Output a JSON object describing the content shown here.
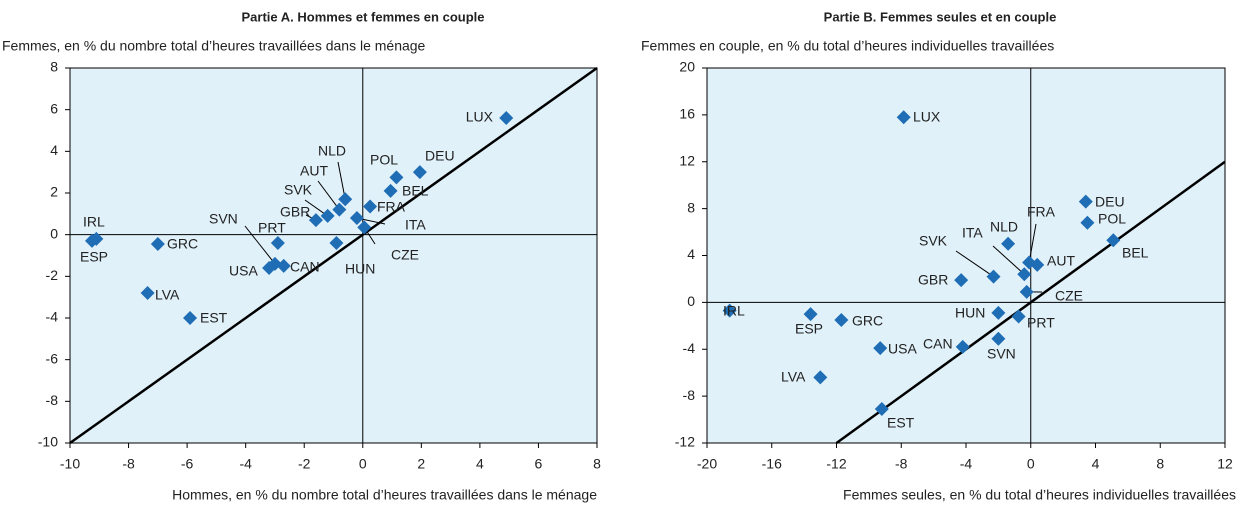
{
  "chart_data": [
    {
      "type": "scatter",
      "title": "Partie A. Hommes et femmes en couple",
      "y_label": "Femmes, en % du nombre total d’heures travaillées dans le ménage",
      "x_label": "Hommes, en % du nombre total d’heures travaillées dans le ménage",
      "color": "#1f6db5",
      "diagonal": true,
      "labels": [
        "LUX",
        "DEU",
        "POL",
        "BEL",
        "NLD",
        "AUT",
        "SVK",
        "GBR",
        "FRA",
        "ITA",
        "CZE",
        "HUN",
        "PRT",
        "SVN",
        "USA",
        "CAN",
        "IRL",
        "ESP",
        "GRC",
        "LVA",
        "EST"
      ],
      "x": [
        4.9,
        1.95,
        1.15,
        0.95,
        -0.6,
        -0.8,
        -1.2,
        -1.6,
        0.25,
        -0.2,
        0.05,
        -0.9,
        -2.9,
        -3.0,
        -3.2,
        -2.7,
        -9.1,
        -9.25,
        -7.0,
        -7.35,
        -5.9
      ],
      "y": [
        5.6,
        3.0,
        2.75,
        2.1,
        1.7,
        1.2,
        0.9,
        0.7,
        1.35,
        0.8,
        0.35,
        -0.4,
        -0.4,
        -1.4,
        -1.6,
        -1.5,
        -0.2,
        -0.3,
        -0.45,
        -2.8,
        -4.0
      ],
      "xlim": [
        -10,
        8
      ],
      "xticks": [
        -10,
        -8,
        -6,
        -4,
        -2,
        0,
        2,
        4,
        6,
        8
      ],
      "ylim": [
        -10,
        8
      ],
      "yticks": [
        -10,
        -8,
        -6,
        -4,
        -2,
        0,
        2,
        4,
        6,
        8
      ]
    },
    {
      "type": "scatter",
      "title": "Partie B. Femmes seules et en couple",
      "y_label": "Femmes en couple, en % du total d’heures individuelles travaillées",
      "x_label": "Femmes seules, en % du total d’heures individuelles travaillées",
      "color": "#1f6db5",
      "diagonal": true,
      "labels": [
        "LUX",
        "DEU",
        "POL",
        "BEL",
        "NLD",
        "FRA",
        "ITA",
        "SVK",
        "AUT",
        "CZE",
        "GBR",
        "HUN",
        "PRT",
        "SVN",
        "CAN",
        "USA",
        "GRC",
        "ESP",
        "IRL",
        "LVA",
        "EST"
      ],
      "x": [
        -7.85,
        3.4,
        3.5,
        5.1,
        -1.4,
        -0.1,
        -0.4,
        -2.3,
        0.4,
        -0.25,
        -4.3,
        -2.0,
        -0.75,
        -2.0,
        -4.2,
        -9.3,
        -11.7,
        -13.6,
        -18.6,
        -13.0,
        -9.2
      ],
      "y": [
        15.8,
        8.6,
        6.8,
        5.3,
        5.0,
        3.4,
        2.4,
        2.2,
        3.2,
        0.9,
        1.9,
        -0.9,
        -1.2,
        -3.1,
        -3.8,
        -3.9,
        -1.5,
        -1.0,
        -0.7,
        -6.4,
        -9.1
      ],
      "xlim": [
        -20,
        12
      ],
      "xticks": [
        -20,
        -16,
        -12,
        -8,
        -4,
        0,
        4,
        8,
        12
      ],
      "ylim": [
        -12,
        20
      ],
      "yticks": [
        -12,
        -8,
        -4,
        0,
        4,
        8,
        12,
        16,
        20
      ]
    }
  ]
}
